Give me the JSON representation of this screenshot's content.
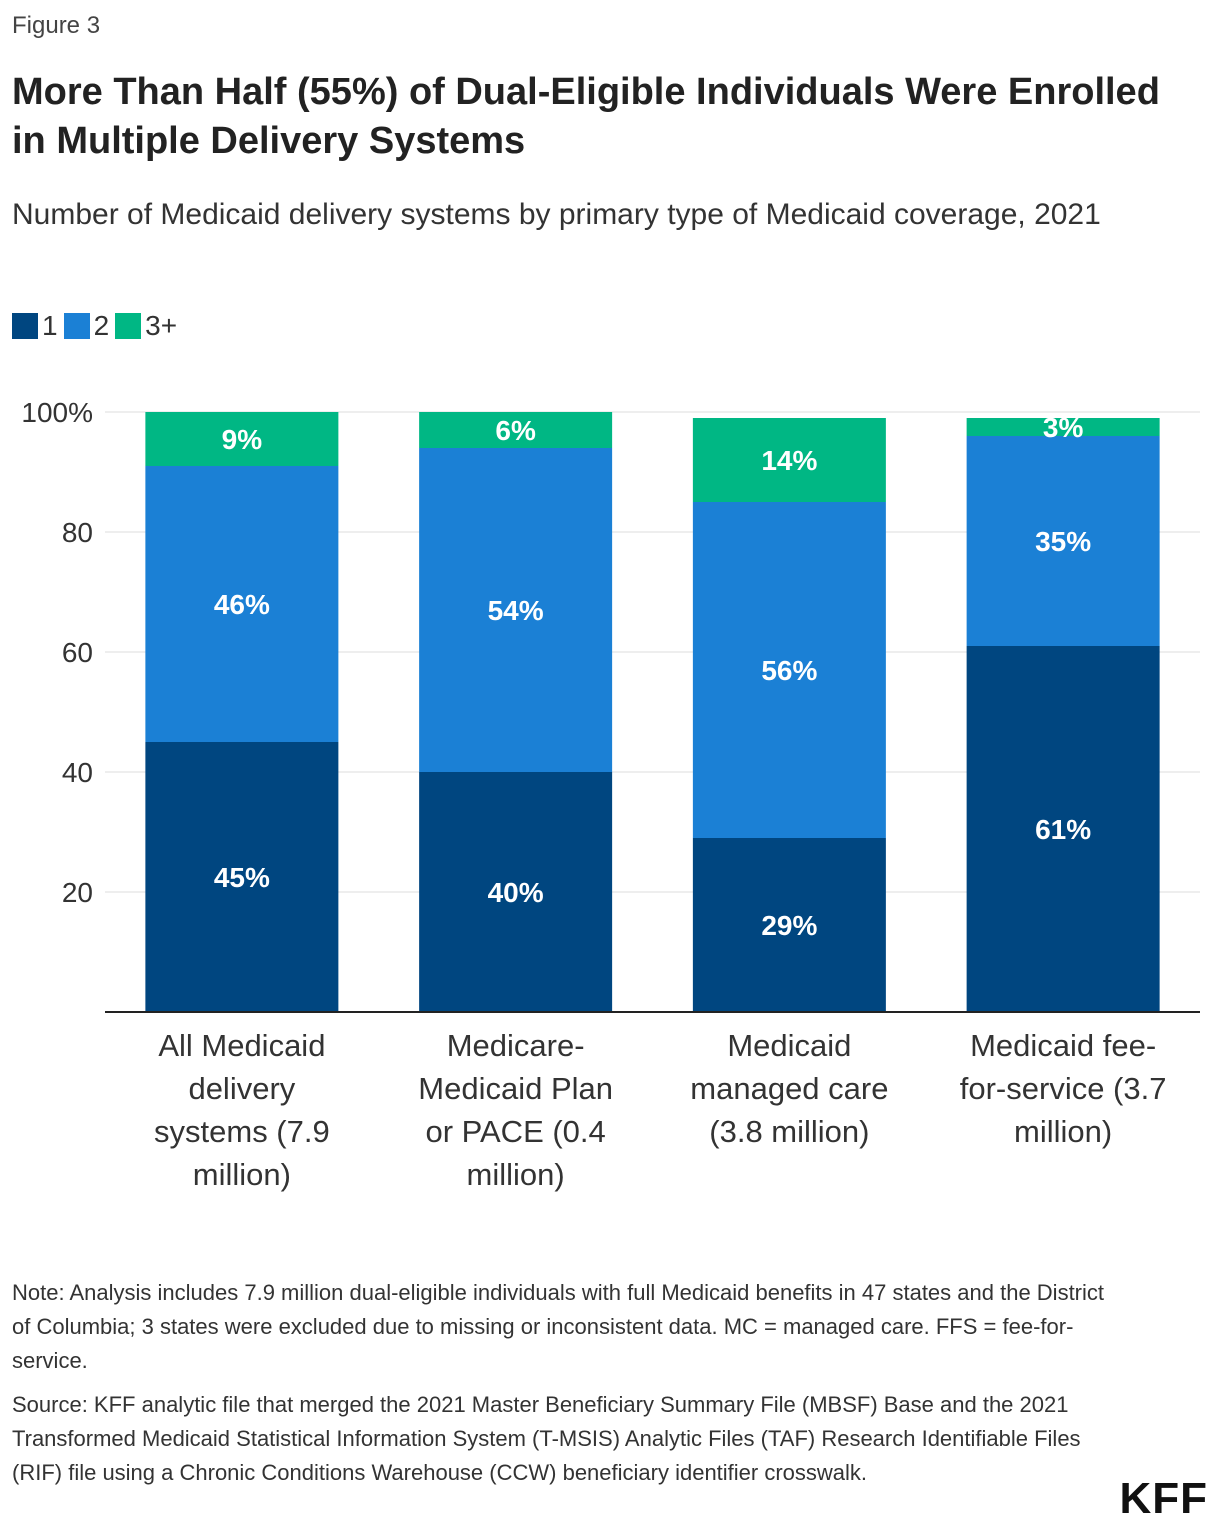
{
  "figure_label": "Figure 3",
  "title": "More Than Half (55%) of Dual-Eligible Individuals Were Enrolled in Multiple Delivery Systems",
  "subtitle": "Number of Medicaid delivery systems by primary type of Medicaid coverage, 2021",
  "legend": [
    {
      "label": "1",
      "color": "#004680"
    },
    {
      "label": "2",
      "color": "#1b80d5"
    },
    {
      "label": "3+",
      "color": "#00b784"
    }
  ],
  "chart_data": {
    "type": "bar",
    "stacked": true,
    "title": "More Than Half (55%) of Dual-Eligible Individuals Were Enrolled in Multiple Delivery Systems",
    "xlabel": "",
    "ylabel": "",
    "ylim": [
      0,
      100
    ],
    "yticks": [
      20,
      40,
      60,
      80,
      100
    ],
    "ytick_labels": [
      "20",
      "40",
      "60",
      "80",
      "100%"
    ],
    "categories": [
      [
        "All Medicaid",
        "delivery",
        "systems (7.9",
        "million)"
      ],
      [
        "Medicare-",
        "Medicaid Plan",
        "or PACE (0.4",
        "million)"
      ],
      [
        "Medicaid",
        "managed care",
        "(3.8 million)"
      ],
      [
        "Medicaid fee-",
        "for-service (3.7",
        "million)"
      ]
    ],
    "series": [
      {
        "name": "1",
        "color": "#004680",
        "values": [
          45,
          40,
          29,
          61
        ],
        "labels": [
          "45%",
          "40%",
          "29%",
          "61%"
        ]
      },
      {
        "name": "2",
        "color": "#1b80d5",
        "values": [
          46,
          54,
          56,
          35
        ],
        "labels": [
          "46%",
          "54%",
          "56%",
          "35%"
        ]
      },
      {
        "name": "3+",
        "color": "#00b784",
        "values": [
          9,
          6,
          14,
          3
        ],
        "labels": [
          "9%",
          "6%",
          "14%",
          "3%"
        ]
      }
    ]
  },
  "note": "Note: Analysis includes 7.9 million dual-eligible individuals with full Medicaid benefits in 47 states and the District of Columbia; 3 states were excluded due to missing or inconsistent data. MC = managed care. FFS = fee-for-service.",
  "source": "Source: KFF analytic file that merged the 2021 Master Beneficiary Summary File (MBSF) Base and the 2021 Transformed Medicaid Statistical Information System (T-MSIS) Analytic Files (TAF) Research Identifiable Files (RIF) file using a Chronic Conditions Warehouse (CCW) beneficiary identifier crosswalk.",
  "logo": "KFF"
}
